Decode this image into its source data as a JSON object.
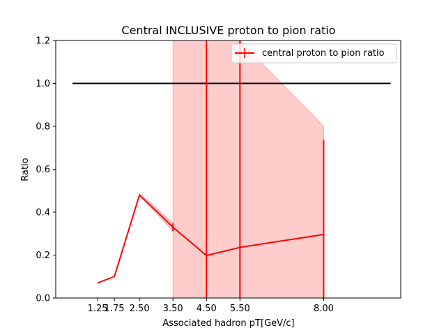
{
  "chart_data": {
    "type": "line",
    "title": "Central INCLUSIVE proton to pion ratio",
    "xlabel": "Associated hadron pT[GeV/c]",
    "ylabel": "Ratio",
    "xlim": [
      0,
      10.3
    ],
    "ylim": [
      0,
      1.2
    ],
    "x_ticks": [
      1.25,
      1.75,
      2.5,
      3.5,
      4.5,
      5.5,
      8.0
    ],
    "x_tick_labels": [
      "1.25",
      "1.75",
      "2.50",
      "3.50",
      "4.50",
      "5.50",
      "8.00"
    ],
    "y_ticks": [
      0.0,
      0.2,
      0.4,
      0.6,
      0.8,
      1.0,
      1.2
    ],
    "y_tick_labels": [
      "0.0",
      "0.2",
      "0.4",
      "0.6",
      "0.8",
      "1.0",
      "1.2"
    ],
    "grid": false,
    "legend_position": "top-right",
    "reference_line": {
      "y": 1.0,
      "x_range": [
        0.5,
        10.0
      ],
      "color": "#000000"
    },
    "series": [
      {
        "name": "central proton to pion ratio",
        "color": "#ff0000",
        "x": [
          1.25,
          1.75,
          2.5,
          3.5,
          4.5,
          5.5,
          8.0
        ],
        "y": [
          0.07,
          0.1,
          0.48,
          0.33,
          0.198,
          0.236,
          0.296
        ],
        "yerr_low": [
          0.0,
          0.0,
          0.0,
          0.018,
          0.198,
          0.236,
          0.296
        ],
        "yerr_high": [
          0.0,
          0.0,
          0.0,
          0.018,
          1.2,
          1.2,
          0.44
        ],
        "band": {
          "color": "#ff0000",
          "opacity": 0.2,
          "x": [
            2.5,
            3.5,
            3.5,
            4.5,
            5.5,
            8.0
          ],
          "low": [
            0.48,
            0.31,
            0.0,
            0.0,
            0.0,
            0.0
          ],
          "high": [
            0.49,
            0.35,
            1.2,
            1.2,
            1.2,
            0.8
          ]
        }
      }
    ]
  }
}
